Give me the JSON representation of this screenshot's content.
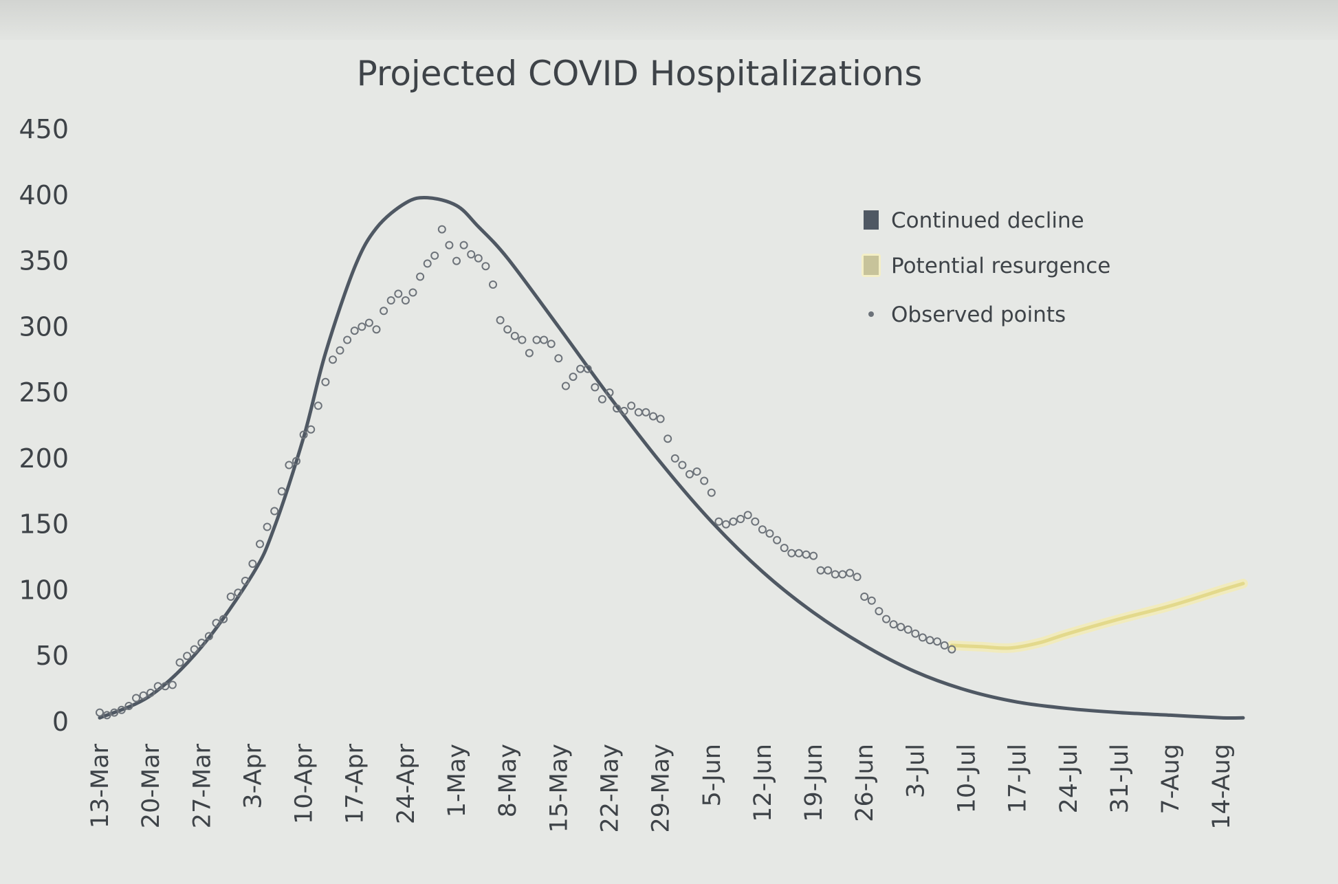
{
  "chart_data": {
    "type": "line",
    "title": "Projected COVID Hospitalizations",
    "xlabel": "",
    "ylabel": "",
    "ylim": [
      0,
      450
    ],
    "y_ticks": [
      0,
      50,
      100,
      150,
      200,
      250,
      300,
      350,
      400,
      450
    ],
    "x_tick_labels": [
      "13-Mar",
      "20-Mar",
      "27-Mar",
      "3-Apr",
      "10-Apr",
      "17-Apr",
      "24-Apr",
      "1-May",
      "8-May",
      "15-May",
      "22-May",
      "29-May",
      "5-Jun",
      "12-Jun",
      "19-Jun",
      "26-Jun",
      "3-Jul",
      "10-Jul",
      "17-Jul",
      "24-Jul",
      "31-Jul",
      "7-Aug",
      "14-Aug"
    ],
    "x_axis": "day index from 13-Mar (ticks every 7 days)",
    "xlim": [
      0,
      157
    ],
    "grid": false,
    "legend_position": "top-right",
    "series": [
      {
        "name": "Continued decline",
        "style": "line",
        "color": "#4f5863",
        "x": [
          0,
          7,
          14,
          21,
          24,
          28,
          31,
          35,
          38,
          42,
          45,
          49,
          52,
          56,
          63,
          70,
          77,
          84,
          91,
          98,
          105,
          112,
          119,
          126,
          133,
          140,
          147,
          154,
          157
        ],
        "values": [
          3,
          20,
          57,
          112,
          148,
          216,
          280,
          345,
          375,
          394,
          398,
          392,
          376,
          352,
          300,
          247,
          197,
          152,
          114,
          83,
          58,
          38,
          24,
          15,
          10,
          7,
          5,
          3,
          3
        ]
      },
      {
        "name": "Potential resurgence",
        "style": "line",
        "color": "#e3d98c",
        "x": [
          117,
          121,
          125,
          129,
          133,
          140,
          147,
          154,
          157
        ],
        "values": [
          58,
          57,
          56,
          60,
          67,
          78,
          88,
          100,
          105
        ]
      },
      {
        "name": "Observed points",
        "style": "scatter",
        "color": "#6c7279",
        "x": [
          0,
          1,
          2,
          3,
          4,
          5,
          6,
          7,
          8,
          9,
          10,
          11,
          12,
          13,
          14,
          15,
          16,
          17,
          18,
          19,
          20,
          21,
          22,
          23,
          24,
          25,
          26,
          27,
          28,
          29,
          30,
          31,
          32,
          33,
          34,
          35,
          36,
          37,
          38,
          39,
          40,
          41,
          42,
          43,
          44,
          45,
          46,
          47,
          48,
          49,
          50,
          51,
          52,
          53,
          54,
          55,
          56,
          57,
          58,
          59,
          60,
          61,
          62,
          63,
          64,
          65,
          66,
          67,
          68,
          69,
          70,
          71,
          72,
          73,
          74,
          75,
          76,
          77,
          78,
          79,
          80,
          81,
          82,
          83,
          84,
          85,
          86,
          87,
          88,
          89,
          90,
          91,
          92,
          93,
          94,
          95,
          96,
          97,
          98,
          99,
          100,
          101,
          102,
          103,
          104,
          105,
          106,
          107,
          108,
          109,
          110,
          111,
          112,
          113,
          114,
          115,
          116,
          117
        ],
        "values": [
          7,
          5,
          7,
          9,
          12,
          18,
          20,
          22,
          27,
          27,
          28,
          45,
          50,
          55,
          60,
          65,
          75,
          78,
          95,
          98,
          107,
          120,
          135,
          148,
          160,
          175,
          195,
          198,
          218,
          222,
          240,
          258,
          275,
          282,
          290,
          297,
          300,
          303,
          298,
          312,
          320,
          325,
          320,
          326,
          338,
          348,
          354,
          374,
          362,
          350,
          362,
          355,
          352,
          346,
          332,
          305,
          298,
          293,
          290,
          280,
          290,
          290,
          287,
          276,
          255,
          262,
          268,
          268,
          254,
          245,
          250,
          238,
          236,
          240,
          235,
          235,
          232,
          230,
          215,
          200,
          195,
          188,
          190,
          183,
          174,
          152,
          150,
          152,
          154,
          157,
          152,
          146,
          143,
          138,
          132,
          128,
          128,
          127,
          126,
          115,
          115,
          112,
          112,
          113,
          110,
          95,
          92,
          84,
          78,
          74,
          72,
          70,
          67,
          64,
          62,
          61,
          58,
          55
        ]
      }
    ]
  }
}
